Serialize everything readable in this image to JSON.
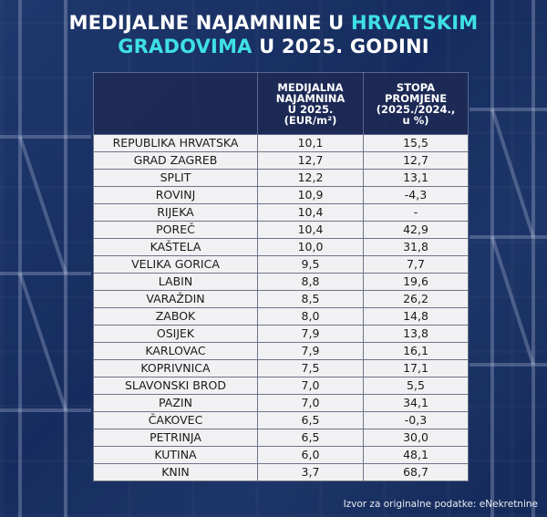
{
  "title": {
    "part1": "MEDIJALNE NAJAMNINE U ",
    "highlight1": "HRVATSKIM",
    "highlight2": "GRADOVIMA",
    "part2": " U 2025. GODINI"
  },
  "colors": {
    "highlight": "#3ee0e6",
    "header_bg": "#1e2850",
    "row_bg": "#f1f1f3"
  },
  "chart_data": {
    "type": "table",
    "columns": [
      "",
      "MEDIJALNA NAJAMNINA U 2025. (EUR/m²)",
      "STOPA PROMJENE (2025./2024., u %)"
    ],
    "column_lines": [
      [],
      [
        "MEDIJALNA",
        "NAJAMNINA",
        "U 2025.",
        "(EUR/m²)"
      ],
      [
        "STOPA",
        "PROMJENE",
        "(2025./2024.,",
        "u %)"
      ]
    ],
    "rows": [
      [
        "REPUBLIKA HRVATSKA",
        "10,1",
        "15,5"
      ],
      [
        "GRAD ZAGREB",
        "12,7",
        "12,7"
      ],
      [
        "SPLIT",
        "12,2",
        "13,1"
      ],
      [
        "ROVINJ",
        "10,9",
        "-4,3"
      ],
      [
        "RIJEKA",
        "10,4",
        "-"
      ],
      [
        "POREČ",
        "10,4",
        "42,9"
      ],
      [
        "KAŠTELA",
        "10,0",
        "31,8"
      ],
      [
        "VELIKA GORICA",
        "9,5",
        "7,7"
      ],
      [
        "LABIN",
        "8,8",
        "19,6"
      ],
      [
        "VARAŽDIN",
        "8,5",
        "26,2"
      ],
      [
        "ZABOK",
        "8,0",
        "14,8"
      ],
      [
        "OSIJEK",
        "7,9",
        "13,8"
      ],
      [
        "KARLOVAC",
        "7,9",
        "16,1"
      ],
      [
        "KOPRIVNICA",
        "7,5",
        "17,1"
      ],
      [
        "SLAVONSKI BROD",
        "7,0",
        "5,5"
      ],
      [
        "PAZIN",
        "7,0",
        "34,1"
      ],
      [
        "ČAKOVEC",
        "6,5",
        "-0,3"
      ],
      [
        "PETRINJA",
        "6,5",
        "30,0"
      ],
      [
        "KUTINA",
        "6,0",
        "48,1"
      ],
      [
        "KNIN",
        "3,7",
        "68,7"
      ]
    ]
  },
  "source": "Izvor za originalne podatke: eNekretnine"
}
